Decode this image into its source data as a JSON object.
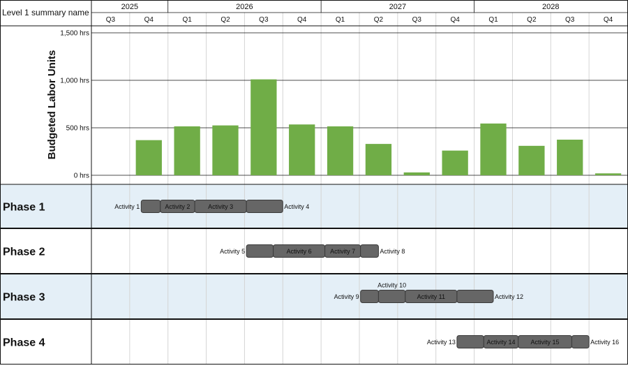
{
  "header": {
    "corner_label": "Level 1 summary name",
    "years": [
      {
        "label": "2025",
        "quarters": [
          "Q3",
          "Q4"
        ]
      },
      {
        "label": "2026",
        "quarters": [
          "Q1",
          "Q2",
          "Q3",
          "Q4"
        ]
      },
      {
        "label": "2027",
        "quarters": [
          "Q1",
          "Q2",
          "Q3",
          "Q4"
        ]
      },
      {
        "label": "2028",
        "quarters": [
          "Q1",
          "Q2",
          "Q3",
          "Q4"
        ]
      }
    ]
  },
  "chart_data": {
    "type": "bar",
    "categories": [
      "2025 Q3",
      "2025 Q4",
      "2026 Q1",
      "2026 Q2",
      "2026 Q3",
      "2026 Q4",
      "2027 Q1",
      "2027 Q2",
      "2027 Q3",
      "2027 Q4",
      "2028 Q1",
      "2028 Q2",
      "2028 Q3",
      "2028 Q4"
    ],
    "values": [
      0,
      370,
      515,
      525,
      1010,
      535,
      515,
      330,
      30,
      260,
      545,
      310,
      375,
      20
    ],
    "title": "",
    "ylabel": "Budgeted Labor Units",
    "ylim": [
      0,
      1500
    ],
    "yticks": [
      {
        "value": 0,
        "label": "0 hrs"
      },
      {
        "value": 500,
        "label": "500 hrs"
      },
      {
        "value": 1000,
        "label": "1,000 hrs"
      },
      {
        "value": 1500,
        "label": "1,500 hrs"
      }
    ],
    "grid": true,
    "bar_color": "#70AD47"
  },
  "gantt": {
    "bar_color": "#666666",
    "row_shade": "#E4EFF7",
    "phases": [
      {
        "name": "Phase 1",
        "shaded": true,
        "activities": [
          {
            "label": "Activity 1",
            "start": 1.3,
            "end": 1.8,
            "label_pos": "left"
          },
          {
            "label": "Activity 2",
            "start": 1.8,
            "end": 2.7,
            "label_pos": "inside"
          },
          {
            "label": "Activity 3",
            "start": 2.7,
            "end": 4.05,
            "label_pos": "inside"
          },
          {
            "label": "Activity 4",
            "start": 4.05,
            "end": 5.0,
            "label_pos": "right"
          }
        ]
      },
      {
        "name": "Phase 2",
        "shaded": false,
        "activities": [
          {
            "label": "Activity 5",
            "start": 4.05,
            "end": 4.75,
            "label_pos": "left"
          },
          {
            "label": "Activity 6",
            "start": 4.75,
            "end": 6.1,
            "label_pos": "inside"
          },
          {
            "label": "Activity 7",
            "start": 6.1,
            "end": 7.03,
            "label_pos": "inside"
          },
          {
            "label": "Activity 8",
            "start": 7.03,
            "end": 7.5,
            "label_pos": "right"
          }
        ]
      },
      {
        "name": "Phase 3",
        "shaded": true,
        "activities": [
          {
            "label": "Activity 9",
            "start": 7.03,
            "end": 7.5,
            "label_pos": "left"
          },
          {
            "label": "Activity 10",
            "start": 7.5,
            "end": 8.2,
            "label_pos": "above"
          },
          {
            "label": "Activity 11",
            "start": 8.2,
            "end": 9.55,
            "label_pos": "inside"
          },
          {
            "label": "Activity 12",
            "start": 9.55,
            "end": 10.5,
            "label_pos": "right"
          }
        ]
      },
      {
        "name": "Phase 4",
        "shaded": false,
        "activities": [
          {
            "label": "Activity 13",
            "start": 9.55,
            "end": 10.25,
            "label_pos": "left"
          },
          {
            "label": "Activity 14",
            "start": 10.25,
            "end": 11.15,
            "label_pos": "inside"
          },
          {
            "label": "Activity 15",
            "start": 11.15,
            "end": 12.55,
            "label_pos": "inside"
          },
          {
            "label": "Activity 16",
            "start": 12.55,
            "end": 13.0,
            "label_pos": "right"
          }
        ]
      }
    ]
  }
}
